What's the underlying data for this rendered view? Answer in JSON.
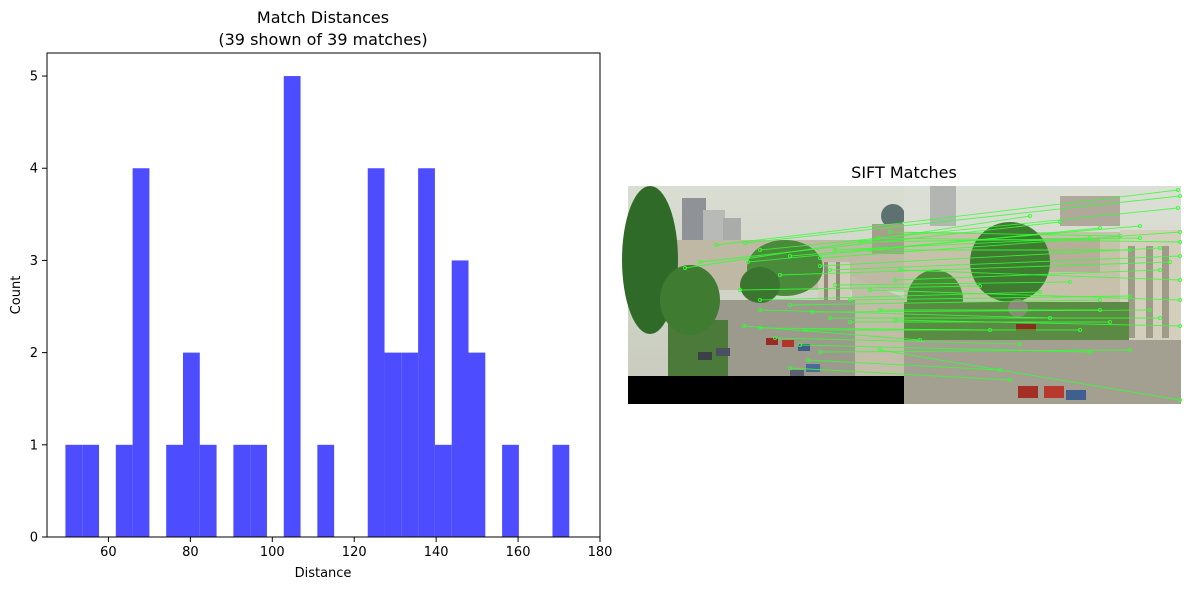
{
  "chart_data": [
    {
      "type": "bar",
      "title": "Match Distances",
      "subtitle": "(39 shown of 39 matches)",
      "xlabel": "Distance",
      "ylabel": "Count",
      "xlim": [
        45,
        180
      ],
      "ylim": [
        0,
        5.25
      ],
      "xticks": [
        60,
        80,
        100,
        120,
        140,
        160,
        180
      ],
      "yticks": [
        0,
        1,
        2,
        3,
        4,
        5
      ],
      "bar_color": "#4d4dff",
      "grid": false,
      "bins": [
        {
          "x0": 49.5,
          "x1": 53.6,
          "count": 1
        },
        {
          "x0": 53.6,
          "x1": 57.7,
          "count": 1
        },
        {
          "x0": 57.7,
          "x1": 61.8,
          "count": 0
        },
        {
          "x0": 61.8,
          "x1": 65.9,
          "count": 1
        },
        {
          "x0": 65.9,
          "x1": 70.0,
          "count": 4
        },
        {
          "x0": 70.0,
          "x1": 74.1,
          "count": 0
        },
        {
          "x0": 74.1,
          "x1": 78.2,
          "count": 1
        },
        {
          "x0": 78.2,
          "x1": 82.3,
          "count": 2
        },
        {
          "x0": 82.3,
          "x1": 86.4,
          "count": 1
        },
        {
          "x0": 86.4,
          "x1": 90.5,
          "count": 0
        },
        {
          "x0": 90.5,
          "x1": 94.6,
          "count": 1
        },
        {
          "x0": 94.6,
          "x1": 98.7,
          "count": 1
        },
        {
          "x0": 98.7,
          "x1": 102.8,
          "count": 0
        },
        {
          "x0": 102.8,
          "x1": 106.9,
          "count": 5
        },
        {
          "x0": 106.9,
          "x1": 111.0,
          "count": 0
        },
        {
          "x0": 111.0,
          "x1": 115.1,
          "count": 1
        },
        {
          "x0": 115.1,
          "x1": 119.2,
          "count": 0
        },
        {
          "x0": 119.2,
          "x1": 123.3,
          "count": 0
        },
        {
          "x0": 123.3,
          "x1": 127.4,
          "count": 4
        },
        {
          "x0": 127.4,
          "x1": 131.5,
          "count": 2
        },
        {
          "x0": 131.5,
          "x1": 135.6,
          "count": 2
        },
        {
          "x0": 135.6,
          "x1": 139.7,
          "count": 4
        },
        {
          "x0": 139.7,
          "x1": 143.8,
          "count": 1
        },
        {
          "x0": 143.8,
          "x1": 147.9,
          "count": 3
        },
        {
          "x0": 147.9,
          "x1": 152.0,
          "count": 2
        },
        {
          "x0": 152.0,
          "x1": 156.1,
          "count": 0
        },
        {
          "x0": 156.1,
          "x1": 160.2,
          "count": 1
        },
        {
          "x0": 160.2,
          "x1": 164.3,
          "count": 0
        },
        {
          "x0": 164.3,
          "x1": 168.4,
          "count": 0
        },
        {
          "x0": 168.4,
          "x1": 172.5,
          "count": 1
        }
      ]
    },
    {
      "type": "image",
      "title": "SIFT Matches",
      "match_line_color": "#33ff33"
    }
  ]
}
